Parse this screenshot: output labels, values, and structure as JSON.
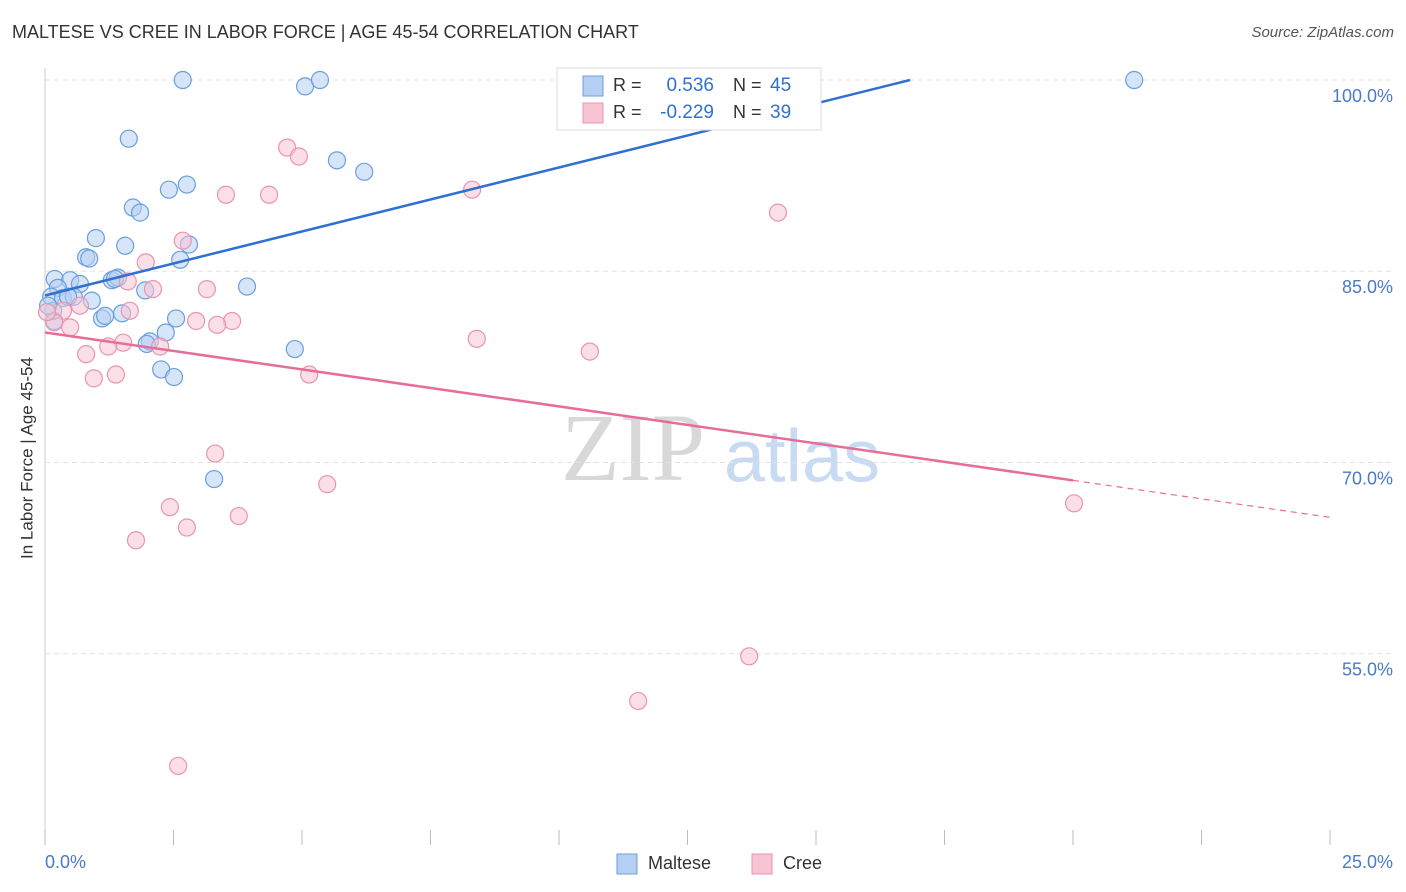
{
  "chart_data": {
    "type": "scatter",
    "title": "MALTESE VS CREE IN LABOR FORCE | AGE 45-54 CORRELATION CHART",
    "source": "Source: ZipAtlas.com",
    "y_label": "In Labor Force | Age 45-54",
    "watermark": [
      "ZIP",
      "atlas"
    ],
    "xlim": [
      0,
      25
    ],
    "ylim": [
      40,
      101
    ],
    "xticks": [
      {
        "value": 0,
        "label": "0.0%"
      },
      {
        "value": 25,
        "label": "25.0%"
      }
    ],
    "xminorticks": [
      2.5,
      5,
      7.5,
      10,
      12.5,
      15,
      17.5,
      20,
      22.5
    ],
    "yticks": [
      {
        "value": 55,
        "label": "55.0%"
      },
      {
        "value": 70,
        "label": "70.0%"
      },
      {
        "value": 85,
        "label": "85.0%"
      },
      {
        "value": 100,
        "label": "100.0%"
      }
    ],
    "grid": true,
    "r_label": "R =",
    "n_label": "N =",
    "series": [
      {
        "name": "Maltese",
        "color": "#6a9fdd",
        "fill": "#b4cff2",
        "line_color": "#2f70d0",
        "r": 0.536,
        "n": 45,
        "trend": {
          "x": [
            0,
            16.83
          ],
          "y": [
            83.1,
            100
          ]
        },
        "x": [
          2.68,
          5.06,
          5.35,
          21.19,
          1.63,
          5.68,
          6.21,
          2.41,
          2.76,
          1.71,
          1.85,
          0.99,
          1.56,
          2.8,
          0.8,
          0.86,
          2.63,
          0.19,
          0.49,
          1.3,
          1.42,
          3.93,
          0.25,
          0.68,
          1.95,
          0.12,
          0.35,
          0.56,
          0.91,
          1.11,
          1.17,
          1.5,
          2.55,
          0.18,
          2.35,
          2.04,
          1.98,
          4.86,
          2.26,
          2.51,
          3.29,
          0.16,
          0.06,
          0.45,
          1.36
        ],
        "values": [
          100.0,
          99.5,
          100.0,
          100.0,
          95.4,
          93.7,
          92.8,
          91.4,
          91.8,
          90.0,
          89.6,
          87.6,
          87.0,
          87.1,
          86.1,
          86.0,
          85.9,
          84.4,
          84.3,
          84.3,
          84.5,
          83.8,
          83.7,
          84.0,
          83.5,
          83.0,
          82.9,
          83.0,
          82.7,
          81.3,
          81.5,
          81.7,
          81.3,
          81.1,
          80.2,
          79.5,
          79.3,
          78.9,
          77.3,
          76.7,
          68.7,
          81.9,
          82.3,
          83.0,
          84.4
        ]
      },
      {
        "name": "Cree",
        "color": "#e994b0",
        "fill": "#f7c4d4",
        "line_color": "#e66d9a",
        "r": -0.229,
        "n": 39,
        "trend": {
          "x": [
            0,
            20
          ],
          "y": [
            80.2,
            68.6
          ]
        },
        "trend_extension": {
          "x": [
            20,
            25
          ],
          "y": [
            68.6,
            65.7
          ]
        },
        "x": [
          4.71,
          4.94,
          3.52,
          4.36,
          8.31,
          14.26,
          2.68,
          1.96,
          1.61,
          2.1,
          3.15,
          0.68,
          0.35,
          1.65,
          2.94,
          3.64,
          3.35,
          0.18,
          0.49,
          8.4,
          1.52,
          1.23,
          2.24,
          10.6,
          0.8,
          1.38,
          0.95,
          5.14,
          3.31,
          5.49,
          20.02,
          2.43,
          3.77,
          2.76,
          1.77,
          13.7,
          11.54,
          2.59,
          0.04
        ],
        "values": [
          94.7,
          94.0,
          91.0,
          91.0,
          91.4,
          89.6,
          87.4,
          85.7,
          84.2,
          83.6,
          83.6,
          82.3,
          81.9,
          81.9,
          81.1,
          81.1,
          80.8,
          81.0,
          80.6,
          79.7,
          79.4,
          79.1,
          79.1,
          78.7,
          78.5,
          76.9,
          76.6,
          76.9,
          70.7,
          68.3,
          66.8,
          66.5,
          65.8,
          64.9,
          63.9,
          54.8,
          51.3,
          46.2,
          81.8
        ]
      }
    ]
  }
}
